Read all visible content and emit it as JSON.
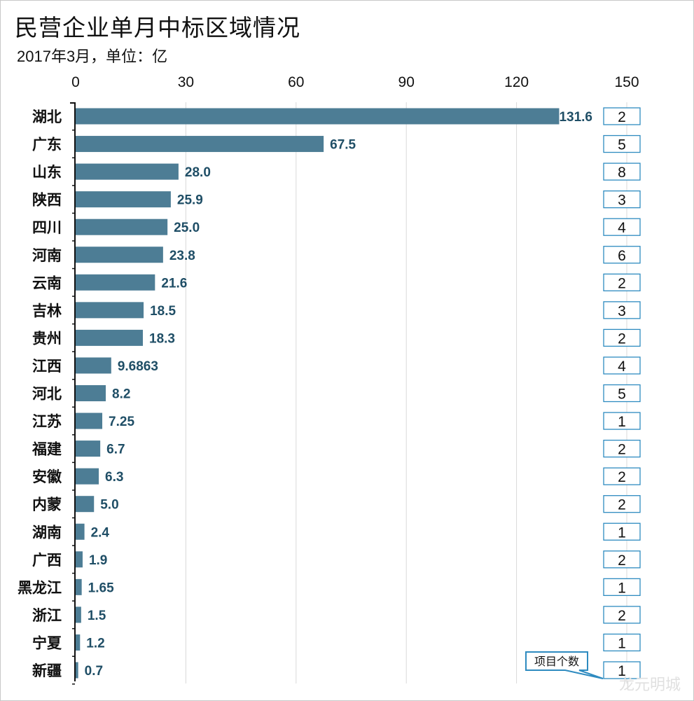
{
  "chart_data": {
    "type": "bar",
    "orientation": "horizontal",
    "title": "民营企业单月中标区域情况",
    "subtitle": "2017年3月，单位：亿",
    "xlim": [
      0,
      150
    ],
    "xticks": [
      0,
      30,
      60,
      90,
      120,
      150
    ],
    "categories": [
      "湖北",
      "广东",
      "山东",
      "陕西",
      "四川",
      "河南",
      "云南",
      "吉林",
      "贵州",
      "江西",
      "河北",
      "江苏",
      "福建",
      "安徽",
      "内蒙",
      "湖南",
      "广西",
      "黑龙江",
      "浙江",
      "宁夏",
      "新疆"
    ],
    "value_labels": [
      "131.6",
      "67.5",
      "28.0",
      "25.9",
      "25.0",
      "23.8",
      "21.6",
      "18.5",
      "18.3",
      "9.6863",
      "8.2",
      "7.25",
      "6.7",
      "6.3",
      "5.0",
      "2.4",
      "1.9",
      "1.65",
      "1.5",
      "1.2",
      "0.7"
    ],
    "values": [
      131.6,
      67.5,
      28.0,
      25.9,
      25.0,
      23.8,
      21.6,
      18.5,
      18.3,
      9.6863,
      8.2,
      7.25,
      6.7,
      6.3,
      5.0,
      2.4,
      1.9,
      1.65,
      1.5,
      1.2,
      0.7
    ],
    "counts": [
      2,
      5,
      8,
      3,
      4,
      6,
      2,
      3,
      2,
      4,
      5,
      1,
      2,
      2,
      2,
      1,
      2,
      1,
      2,
      1,
      1
    ],
    "count_label": "项目个数",
    "bar_color": "#4d7d95",
    "grid": true
  },
  "watermark": "龙元明城"
}
